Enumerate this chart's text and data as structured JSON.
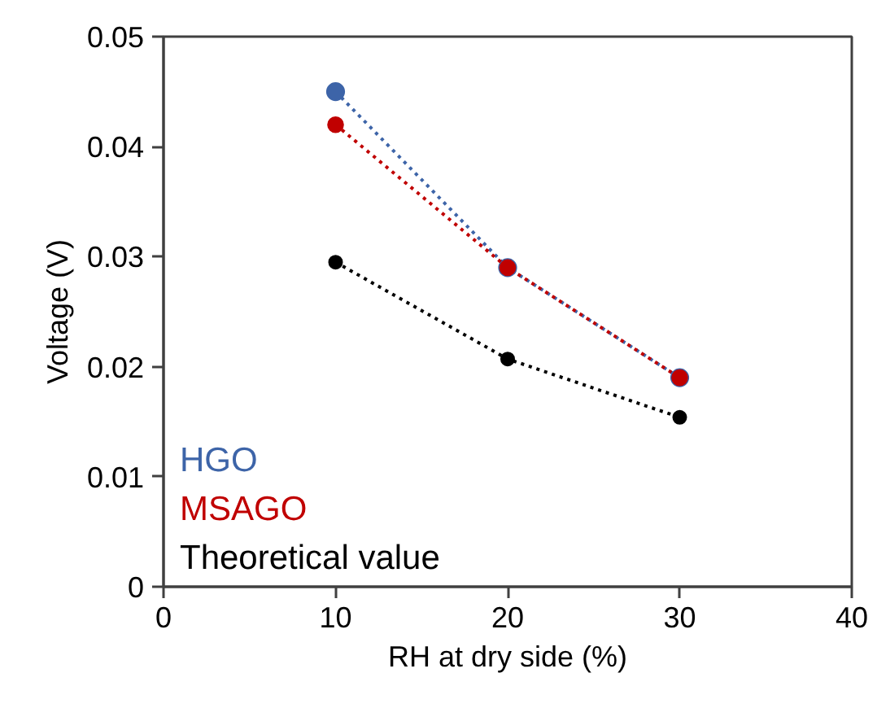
{
  "chart_data": {
    "type": "line",
    "xlabel": "RH at dry side (%)",
    "ylabel": "Voltage (V)",
    "x": [
      10,
      20,
      30
    ],
    "series": [
      {
        "name": "HGO",
        "color": "#3d64a8",
        "values": [
          0.045,
          0.029,
          0.019
        ]
      },
      {
        "name": "MSAGO",
        "color": "#c00000",
        "values": [
          0.042,
          0.029,
          0.019
        ]
      },
      {
        "name": "Theoretical value",
        "color": "#000000",
        "values": [
          0.0295,
          0.0207,
          0.0154
        ]
      }
    ],
    "xlim": [
      0,
      40
    ],
    "xticks": [
      0,
      10,
      20,
      30,
      40
    ],
    "ylim": [
      0,
      0.05
    ],
    "yticks": [
      0,
      0.01,
      0.02,
      0.03,
      0.04,
      0.05
    ],
    "marker": "circle",
    "line_style": "dotted",
    "legend": "bottom left",
    "grid": false
  }
}
